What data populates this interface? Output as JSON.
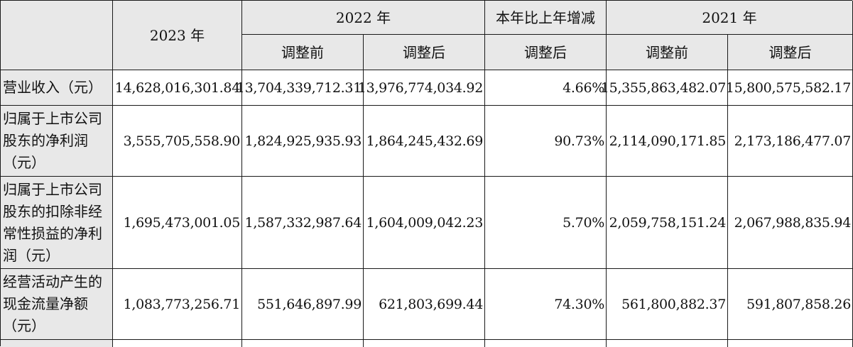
{
  "header": {
    "year_2023": "2023 年",
    "year_2022": "2022 年",
    "change": "本年比上年增减",
    "year_2021": "2021 年",
    "before_adj": "调整前",
    "after_adj": "调整后"
  },
  "rows": [
    {
      "label": "营业收入（元）",
      "v2023": "14,628,016,301.84",
      "v2022_before": "13,704,339,712.31",
      "v2022_after": "13,976,774,034.92",
      "change": "4.66%",
      "v2021_before": "15,355,863,482.07",
      "v2021_after": "15,800,575,582.17"
    },
    {
      "label": "归属于上市公司股东的净利润（元）",
      "v2023": "3,555,705,558.90",
      "v2022_before": "1,824,925,935.93",
      "v2022_after": "1,864,245,432.69",
      "change": "90.73%",
      "v2021_before": "2,114,090,171.85",
      "v2021_after": "2,173,186,477.07"
    },
    {
      "label": "归属于上市公司股东的扣除非经常性损益的净利润（元）",
      "v2023": "1,695,473,001.05",
      "v2022_before": "1,587,332,987.64",
      "v2022_after": "1,604,009,042.23",
      "change": "5.70%",
      "v2021_before": "2,059,758,151.24",
      "v2021_after": "2,067,988,835.94"
    },
    {
      "label": "经营活动产生的现金流量净额（元）",
      "v2023": "1,083,773,256.71",
      "v2022_before": "551,646,897.99",
      "v2022_after": "621,803,699.44",
      "change": "74.30%",
      "v2021_before": "561,800,882.37",
      "v2021_after": "591,807,858.26"
    }
  ]
}
